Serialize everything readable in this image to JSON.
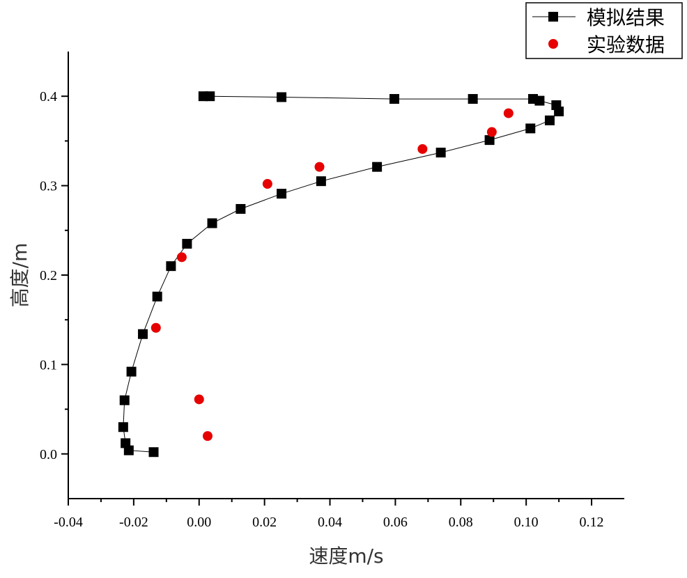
{
  "chart_data": {
    "type": "scatter",
    "xlabel": "速度m/s",
    "ylabel": "高度/m",
    "xlim": [
      -0.04,
      0.13
    ],
    "ylim": [
      -0.05,
      0.45
    ],
    "x_ticks": [
      "-0.04",
      "-0.02",
      "0.00",
      "0.02",
      "0.04",
      "0.06",
      "0.08",
      "0.10",
      "0.12"
    ],
    "x_tick_values": [
      -0.04,
      -0.02,
      0.0,
      0.02,
      0.04,
      0.06,
      0.08,
      0.1,
      0.12
    ],
    "y_ticks": [
      "0.0",
      "0.1",
      "0.2",
      "0.3",
      "0.4"
    ],
    "y_tick_values": [
      0.0,
      0.1,
      0.2,
      0.3,
      0.4
    ],
    "grid": false,
    "legend_position": "top-right",
    "series": [
      {
        "name": "模拟结果",
        "style": "line-square",
        "color": "#000000",
        "points": [
          [
            -0.0139,
            0.002
          ],
          [
            -0.0215,
            0.004
          ],
          [
            -0.0225,
            0.012
          ],
          [
            -0.0232,
            0.03
          ],
          [
            -0.0228,
            0.06
          ],
          [
            -0.0207,
            0.092
          ],
          [
            -0.0172,
            0.134
          ],
          [
            -0.0128,
            0.176
          ],
          [
            -0.0086,
            0.21
          ],
          [
            -0.0037,
            0.235
          ],
          [
            0.004,
            0.258
          ],
          [
            0.0127,
            0.274
          ],
          [
            0.0252,
            0.291
          ],
          [
            0.0373,
            0.305
          ],
          [
            0.0544,
            0.321
          ],
          [
            0.0739,
            0.337
          ],
          [
            0.0888,
            0.351
          ],
          [
            0.1013,
            0.364
          ],
          [
            0.1072,
            0.373
          ],
          [
            0.11,
            0.383
          ],
          [
            0.1092,
            0.39
          ],
          [
            0.1041,
            0.395
          ],
          [
            0.1021,
            0.397
          ],
          [
            0.0837,
            0.397
          ],
          [
            0.0597,
            0.397
          ],
          [
            0.0252,
            0.399
          ],
          [
            0.0033,
            0.4
          ],
          [
            0.0013,
            0.4
          ]
        ]
      },
      {
        "name": "实验数据",
        "style": "circle",
        "color": "#e60000",
        "points": [
          [
            0.0026,
            0.02
          ],
          [
            0.0,
            0.061
          ],
          [
            -0.0132,
            0.141
          ],
          [
            -0.0053,
            0.22
          ],
          [
            0.0209,
            0.302
          ],
          [
            0.0368,
            0.321
          ],
          [
            0.0683,
            0.341
          ],
          [
            0.0895,
            0.36
          ],
          [
            0.0946,
            0.381
          ]
        ]
      }
    ]
  }
}
